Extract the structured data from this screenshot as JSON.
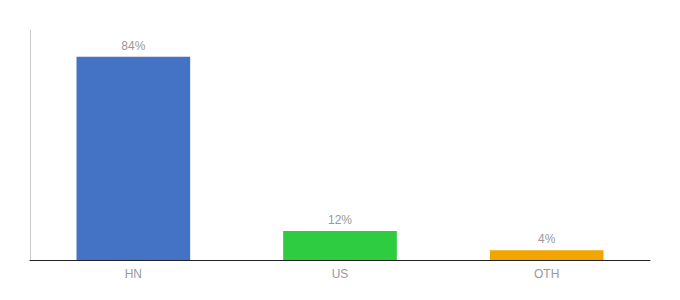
{
  "chart_data": {
    "type": "bar",
    "categories": [
      "HN",
      "US",
      "OTH"
    ],
    "values": [
      84,
      12,
      4
    ],
    "value_labels": [
      "84%",
      "12%",
      "4%"
    ],
    "data_labels": true,
    "colors": [
      "#4472c4",
      "#2ecc40",
      "#f0a500"
    ],
    "ylim": [
      0,
      95
    ],
    "grid": false,
    "tick_labels": "x"
  }
}
